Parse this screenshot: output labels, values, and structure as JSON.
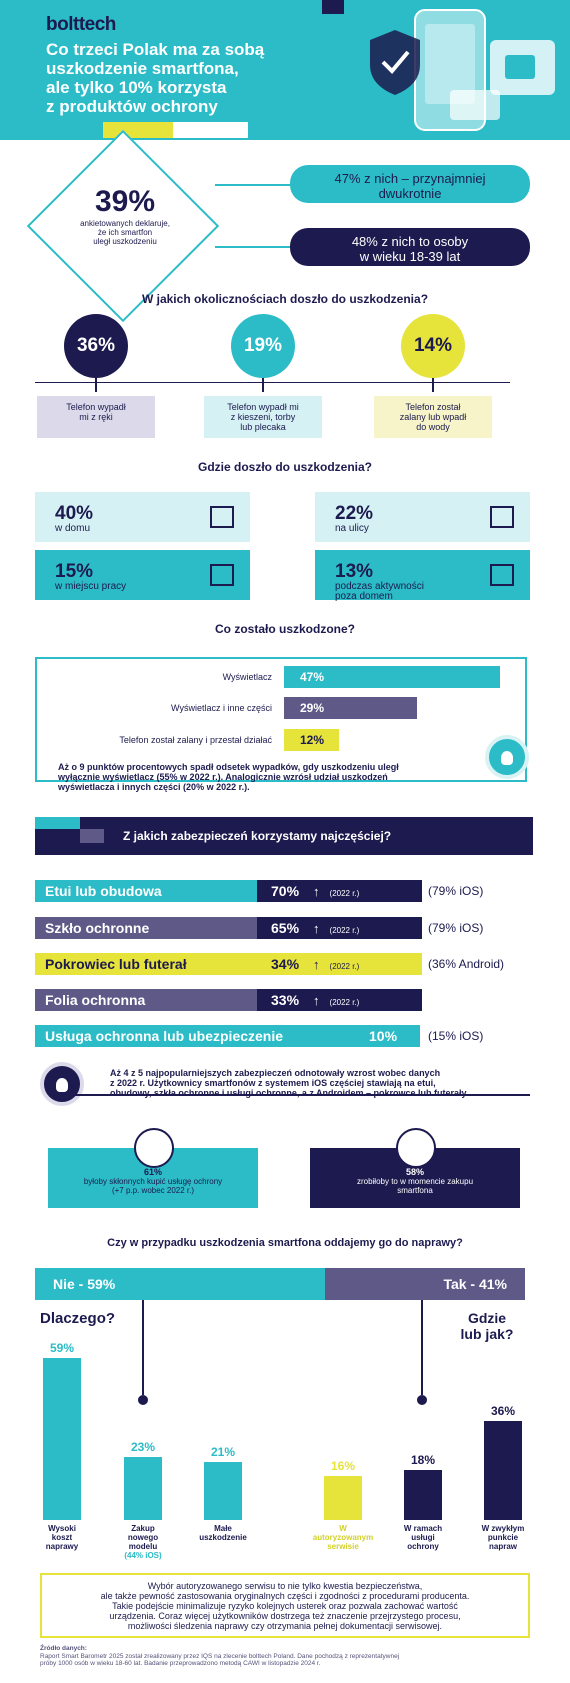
{
  "header": {
    "logo": "bolttech",
    "headline_lines": [
      "Co trzeci Polak ma za sobą",
      "uszkodzenie smartfona,",
      "ale tylko 10% korzysta",
      "z produktów ochrony"
    ]
  },
  "stat39": {
    "value": "39%",
    "desc_lines": [
      "ankietowanych deklaruje,",
      "że ich smartfon",
      "uległ uszkodzeniu"
    ],
    "pill1_lines": [
      "47% z nich – przynajmniej",
      "dwukrotnie"
    ],
    "pill2_lines": [
      "48% z nich to osoby",
      "w wieku 18-39 lat"
    ]
  },
  "circumstances": {
    "title": "W jakich okolicznościach doszło do uszkodzenia?",
    "items": [
      {
        "pct": "36%",
        "lines": [
          "Telefon wypadł",
          "mi z ręki"
        ],
        "circle": "#1c1a4e",
        "circle_text": "#ffffff",
        "box": "#dcdaea"
      },
      {
        "pct": "19%",
        "lines": [
          "Telefon wypadł mi",
          "z kieszeni, torby",
          "lub plecaka"
        ],
        "circle": "#2bbcc7",
        "circle_text": "#ffffff",
        "box": "#d6f1f4"
      },
      {
        "pct": "14%",
        "lines": [
          "Telefon został",
          "zalany lub wpadł",
          "do wody"
        ],
        "circle": "#e6e33a",
        "circle_text": "#1c1a4e",
        "box": "#f6f4c8"
      }
    ]
  },
  "where": {
    "title": "Gdzie doszło do uszkodzenia?",
    "items": [
      {
        "pct": "40%",
        "lines": [
          "w domu"
        ],
        "icon": "house-icon",
        "color": "#d6f1f4"
      },
      {
        "pct": "22%",
        "lines": [
          "na ulicy"
        ],
        "icon": "scooter-icon",
        "color": "#d6f1f4"
      },
      {
        "pct": "15%",
        "lines": [
          "w miejscu pracy"
        ],
        "icon": "office-building-icon",
        "color": "#2bbcc7"
      },
      {
        "pct": "13%",
        "lines": [
          "podczas aktywności",
          "poza domem"
        ],
        "icon": "hiker-icon",
        "color": "#2bbcc7"
      }
    ]
  },
  "damaged": {
    "title": "Co zostało uszkodzone?",
    "items": [
      {
        "label": "Wyświetlacz",
        "value": 47,
        "text": "47%",
        "color": "#2bbcc7",
        "text_color": "#ffffff"
      },
      {
        "label": "Wyświetlacz i inne części",
        "value": 29,
        "text": "29%",
        "color": "#5e5987",
        "text_color": "#ffffff"
      },
      {
        "label": "Telefon został zalany i przestał działać",
        "value": 12,
        "text": "12%",
        "color": "#e6e33a",
        "text_color": "#1c1a4e"
      }
    ],
    "note_lines": [
      "Aż o 9 punktów procentowych spadł odsetek wypadków, gdy uszkodzeniu uległ",
      "wyłącznie wyświetlacz (55% w 2022 r.). Analogicznie wzrósł udział uszkodzeń",
      "wyświetlacza i innych części (20% w 2022 r.)."
    ]
  },
  "protection": {
    "title": "Z jakich zabezpieczeń korzystamy najczęściej?",
    "items": [
      {
        "label": "Etui lub obudowa",
        "pct": "70%",
        "year": "(2022 r.)",
        "extra": "(79% iOS)",
        "label_bg": "#2bbcc7",
        "label_fg": "#ffffff",
        "pct_bg": "#1c1a4e",
        "pct_fg": "#ffffff"
      },
      {
        "label": "Szkło ochronne",
        "pct": "65%",
        "year": "(2022 r.)",
        "extra": "(79% iOS)",
        "label_bg": "#5e5987",
        "label_fg": "#ffffff",
        "pct_bg": "#1c1a4e",
        "pct_fg": "#ffffff"
      },
      {
        "label": "Pokrowiec lub futerał",
        "pct": "34%",
        "year": "(2022 r.)",
        "extra": "(36% Android)",
        "label_bg": "#e6e33a",
        "label_fg": "#1c1a4e",
        "pct_bg": "#e6e33a",
        "pct_fg": "#1c1a4e"
      },
      {
        "label": "Folia ochronna",
        "pct": "33%",
        "year": "(2022 r.)",
        "extra": "",
        "label_bg": "#5e5987",
        "label_fg": "#ffffff",
        "pct_bg": "#1c1a4e",
        "pct_fg": "#ffffff"
      },
      {
        "label": "Usługa ochronna lub ubezpieczenie",
        "pct": "10%",
        "year": "",
        "extra": "(15% iOS)",
        "label_bg": "#2bbcc7",
        "label_fg": "#ffffff",
        "pct_bg": "#2bbcc7",
        "pct_fg": "#ffffff"
      }
    ],
    "note_lines": [
      "Aż 4 z 5 najpopularniejszych zabezpieczeń odnotowały wzrost wobec danych",
      "z 2022 r. Użytkownicy smartfonów z systemem iOS częściej stawiają na etui,",
      "obudowy, szkła ochronne i usługi ochronne, a z Androidem – pokrowce lub futerały."
    ]
  },
  "buy": {
    "left": {
      "pct": "61%",
      "lines": [
        "byłoby skłonnych kupić usługę ochrony",
        "(+7 p.p. wobec 2022 r.)"
      ]
    },
    "right": {
      "pct": "58%",
      "lines": [
        "zrobiłoby to w momencie zakupu",
        "smartfona"
      ]
    }
  },
  "repair": {
    "title": "Czy w przypadku uszkodzenia smartfona oddajemy go do naprawy?",
    "no_label": "Nie - 59%",
    "yes_label": "Tak - 41%",
    "why_label": "Dlaczego?",
    "where_lines": [
      "Gdzie",
      "lub jak?"
    ],
    "note_lines": [
      "Wybór autoryzowanego serwisu to nie tylko kwestia bezpieczeństwa,",
      "ale także pewność zastosowania oryginalnych części i zgodności z procedurami producenta.",
      "Takie podejście minimalizuje ryzyko kolejnych usterek oraz pozwala zachować wartość",
      "urządzenia. Coraz więcej użytkowników dostrzega też znaczenie przejrzystego procesu,",
      "możliwości śledzenia naprawy czy otrzymania pełnej dokumentacji serwisowej."
    ]
  },
  "chart_data": {
    "type": "bar",
    "categories": [
      "Wysoki koszt naprawy",
      "Zakup nowego modelu",
      "Małe uszkodzenie",
      "W autoryzowanym serwisie",
      "W ramach usługi ochrony",
      "W zwykłym punkcie napraw"
    ],
    "label_lines": [
      [
        "Wysoki",
        "koszt",
        "naprawy"
      ],
      [
        "Zakup",
        "nowego",
        "modelu"
      ],
      [
        "Małe",
        "uszkodzenie"
      ],
      [
        "W",
        "autoryzowanym",
        "serwisie"
      ],
      [
        "W ramach",
        "usługi",
        "ochrony"
      ],
      [
        "W zwykłym",
        "punkcie",
        "napraw"
      ]
    ],
    "values": [
      59,
      23,
      21,
      16,
      18,
      36
    ],
    "value_labels": [
      "59%",
      "23%",
      "21%",
      "16%",
      "18%",
      "36%"
    ],
    "sub_labels": [
      "",
      "(44% iOS)",
      "",
      "",
      "",
      ""
    ],
    "colors": [
      "#2bbcc7",
      "#2bbcc7",
      "#2bbcc7",
      "#e6e33a",
      "#1c1a4e",
      "#1c1a4e"
    ],
    "ylim": [
      0,
      60
    ]
  },
  "source": {
    "title": "Źródło danych:",
    "lines": [
      "Raport Smart Barometr 2025 został zrealizowany przez IQS na zlecenie bolttech Poland. Dane pochodzą z reprezentatywnej",
      "próby 1000 osób w wieku 18-60 lat. Badanie przeprowadzono metodą CAWI w listopadzie 2024 r."
    ]
  }
}
